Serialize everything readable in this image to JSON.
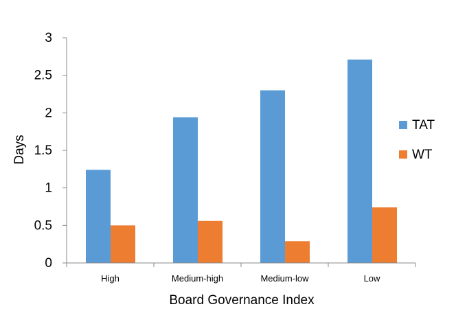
{
  "chart_data": {
    "type": "bar",
    "categories": [
      "High",
      "Medium-high",
      "Medium-low",
      "Low"
    ],
    "series": [
      {
        "name": "TAT",
        "values": [
          1.24,
          1.94,
          2.3,
          2.71
        ],
        "color": "#5b9bd5"
      },
      {
        "name": "WT",
        "values": [
          0.5,
          0.56,
          0.29,
          0.74
        ],
        "color": "#ed7d31"
      }
    ],
    "xlabel": "Board Governance Index",
    "ylabel": "Days",
    "ylim": [
      0,
      3
    ],
    "yticks": [
      "0",
      "0.5",
      "1",
      "1.5",
      "2",
      "2.5",
      "3"
    ],
    "grid": false,
    "legend_position": "right"
  }
}
